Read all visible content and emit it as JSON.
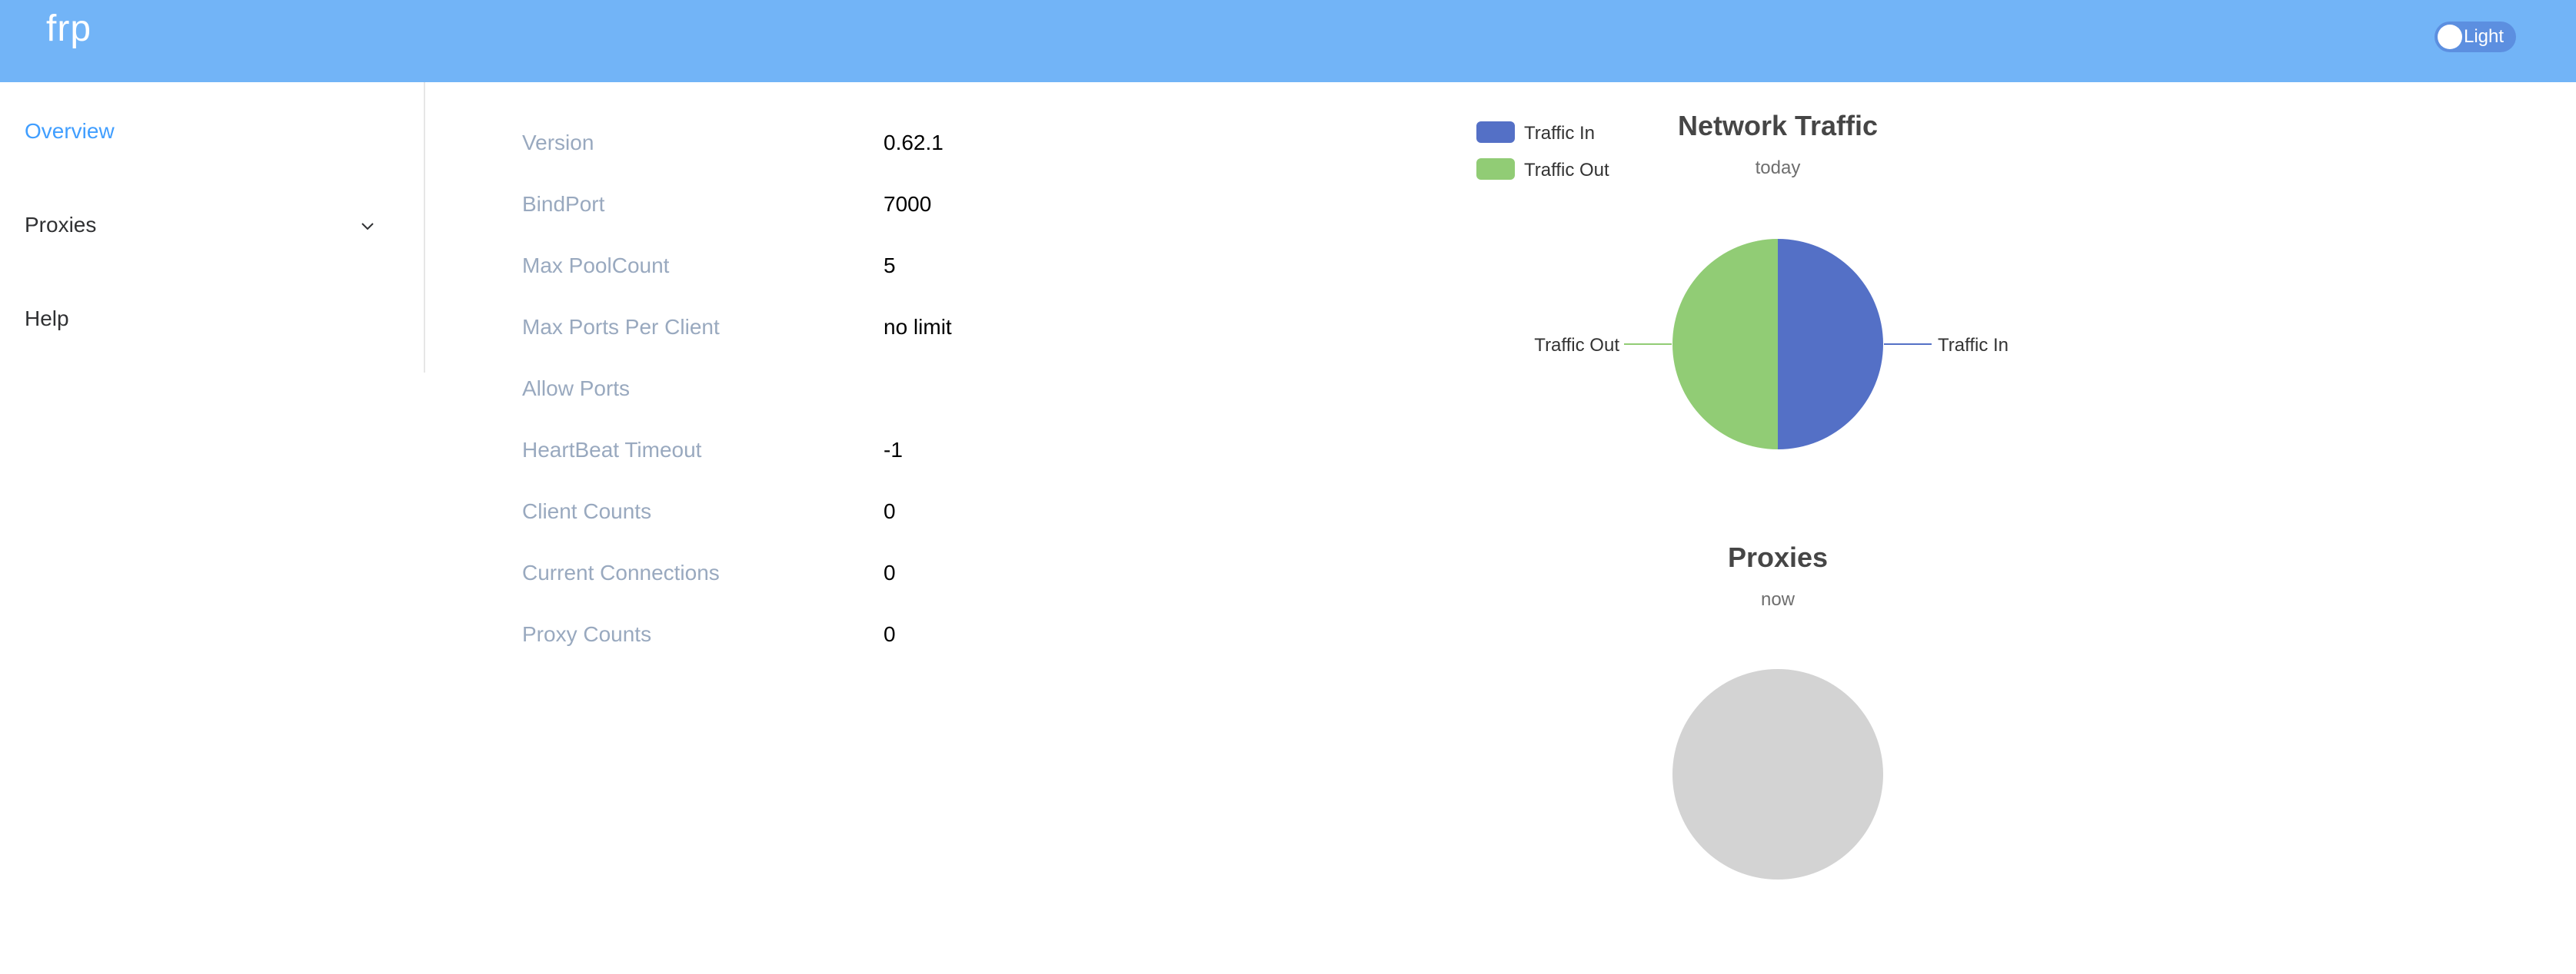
{
  "header": {
    "logo": "frp",
    "theme_label": "Light",
    "bg_color": "#72b4f7"
  },
  "sidebar": {
    "items": [
      {
        "label": "Overview",
        "active": true
      },
      {
        "label": "Proxies",
        "expandable": true,
        "icon": "chevron-down-icon"
      },
      {
        "label": "Help"
      }
    ]
  },
  "server_info": [
    {
      "label": "Version",
      "value": "0.62.1"
    },
    {
      "label": "BindPort",
      "value": "7000"
    },
    {
      "label": "Max PoolCount",
      "value": "5"
    },
    {
      "label": "Max Ports Per Client",
      "value": "no limit"
    },
    {
      "label": "Allow Ports",
      "value": ""
    },
    {
      "label": "HeartBeat Timeout",
      "value": "-1"
    },
    {
      "label": "Client Counts",
      "value": "0"
    },
    {
      "label": "Current Connections",
      "value": "0"
    },
    {
      "label": "Proxy Counts",
      "value": "0"
    }
  ],
  "chart_data": [
    {
      "type": "pie",
      "title": "Network Traffic",
      "subtitle": "today",
      "legend": [
        "Traffic In",
        "Traffic Out"
      ],
      "legend_position": "top-left",
      "series": [
        {
          "name": "Traffic In",
          "value": 50,
          "color": "#5470c6"
        },
        {
          "name": "Traffic Out",
          "value": 50,
          "color": "#91cc75"
        }
      ]
    },
    {
      "type": "pie",
      "title": "Proxies",
      "subtitle": "now",
      "series": [],
      "empty_color": "#d3d3d3"
    }
  ]
}
